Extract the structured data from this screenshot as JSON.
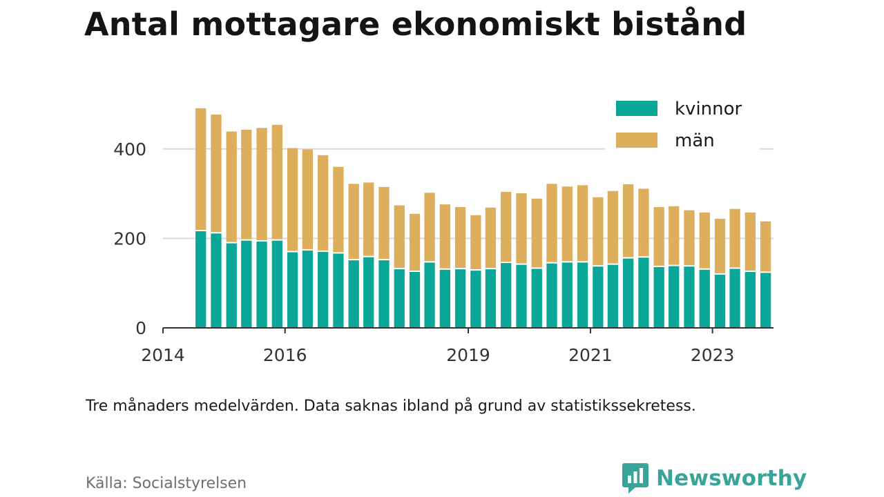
{
  "title": "Antal mottagare ekonomiskt bistånd",
  "note": "Tre månaders medelvärden. Data saknas ibland på grund av statistikssekretess.",
  "source": "Källa: Socialstyrelsen",
  "brand": {
    "name": "Newsworthy",
    "icon": "newsworthy-logo-icon",
    "color": "#3aa39a"
  },
  "chart_data": {
    "type": "bar",
    "stacked": true,
    "x_start": "2014-01-01",
    "x_end": "2024-01-01",
    "x_ticks": [
      {
        "date": "2014-01-01",
        "label": "2014"
      },
      {
        "date": "2016-01-01",
        "label": "2016"
      },
      {
        "date": "2019-01-01",
        "label": "2019"
      },
      {
        "date": "2021-01-01",
        "label": "2021"
      },
      {
        "date": "2023-01-01",
        "label": "2023"
      }
    ],
    "categories": [
      "2014-08",
      "2014-11",
      "2015-02",
      "2015-05",
      "2015-08",
      "2015-11",
      "2016-02",
      "2016-05",
      "2016-08",
      "2016-11",
      "2017-02",
      "2017-05",
      "2017-08",
      "2017-11",
      "2018-02",
      "2018-05",
      "2018-08",
      "2018-11",
      "2019-02",
      "2019-05",
      "2019-08",
      "2019-11",
      "2020-02",
      "2020-05",
      "2020-08",
      "2020-11",
      "2021-02",
      "2021-05",
      "2021-08",
      "2021-11",
      "2022-02",
      "2022-05",
      "2022-08",
      "2022-11",
      "2023-02",
      "2023-05",
      "2023-08",
      "2023-11"
    ],
    "series": [
      {
        "name": "kvinnor",
        "color": "#0aa698",
        "values": [
          216,
          211,
          189,
          195,
          193,
          195,
          169,
          173,
          170,
          166,
          151,
          158,
          151,
          131,
          125,
          146,
          130,
          131,
          128,
          131,
          145,
          141,
          132,
          144,
          146,
          146,
          137,
          141,
          155,
          157,
          136,
          138,
          137,
          130,
          119,
          132,
          125,
          123
        ]
      },
      {
        "name": "män",
        "color": "#ddae5c",
        "values": [
          275,
          266,
          250,
          248,
          254,
          259,
          233,
          226,
          216,
          194,
          171,
          167,
          164,
          143,
          130,
          156,
          146,
          139,
          124,
          138,
          159,
          160,
          157,
          178,
          170,
          173,
          155,
          165,
          166,
          154,
          134,
          134,
          126,
          128,
          125,
          134,
          133,
          115
        ]
      }
    ],
    "ylim": [
      0,
      500
    ],
    "y_ticks": [
      0,
      200,
      400
    ],
    "grid": true,
    "legend_position": "top-right"
  }
}
